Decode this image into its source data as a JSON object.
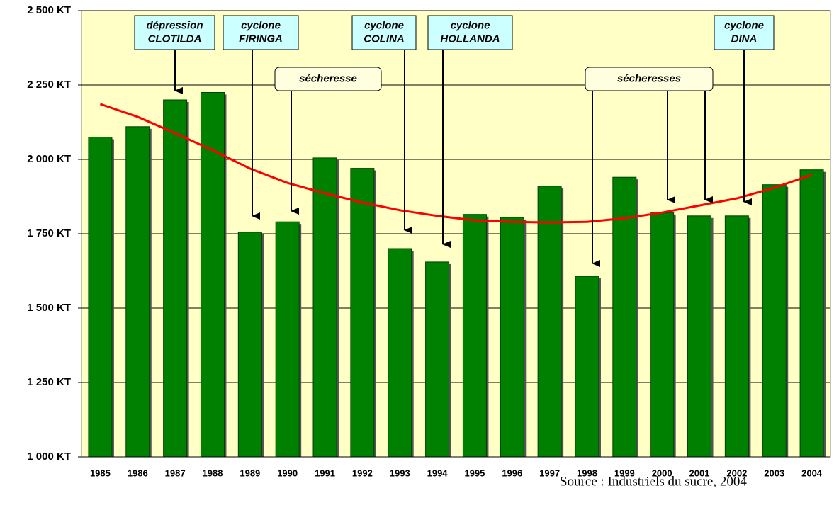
{
  "chart_data": {
    "type": "bar",
    "categories": [
      "1985",
      "1986",
      "1987",
      "1988",
      "1989",
      "1990",
      "1991",
      "1992",
      "1993",
      "1994",
      "1995",
      "1996",
      "1997",
      "1998",
      "1999",
      "2000",
      "2001",
      "2002",
      "2003",
      "2004"
    ],
    "values": [
      2075,
      2110,
      2200,
      2225,
      1755,
      1790,
      2005,
      1970,
      1700,
      1655,
      1815,
      1805,
      1910,
      1607,
      1940,
      1820,
      1810,
      1810,
      1915,
      1965
    ],
    "color": "#008000",
    "trend_values": [
      2186,
      2143,
      2088,
      2031,
      1969,
      1921,
      1886,
      1855,
      1829,
      1810,
      1795,
      1790,
      1788,
      1790,
      1802,
      1821,
      1845,
      1869,
      1905,
      1948
    ],
    "trend_color": "#ff0000",
    "ylim": [
      1000,
      2500
    ],
    "yticks": [
      {
        "value": 1000,
        "label": "1 000 KT"
      },
      {
        "value": 1250,
        "label": "1 250 KT"
      },
      {
        "value": 1500,
        "label": "1 500 KT"
      },
      {
        "value": 1750,
        "label": "1 750 KT"
      },
      {
        "value": 2000,
        "label": "2 000 KT"
      },
      {
        "value": 2250,
        "label": "2 250 KT"
      },
      {
        "value": 2500,
        "label": "2 500 KT"
      }
    ],
    "grid": true,
    "annotations": [
      {
        "text": [
          "dépression",
          "CLOTILDA"
        ]
      },
      {
        "text": [
          "cyclone",
          "FIRINGA"
        ]
      },
      {
        "text": [
          "sécheresse"
        ]
      },
      {
        "text": [
          "cyclone",
          "COLINA"
        ]
      },
      {
        "text": [
          "cyclone",
          "HOLLANDA"
        ]
      },
      {
        "text": [
          "sécheresses"
        ]
      },
      {
        "text": [
          "cyclone",
          "DINA"
        ]
      }
    ],
    "source": "Source : Industriels du sucre, 2004"
  }
}
